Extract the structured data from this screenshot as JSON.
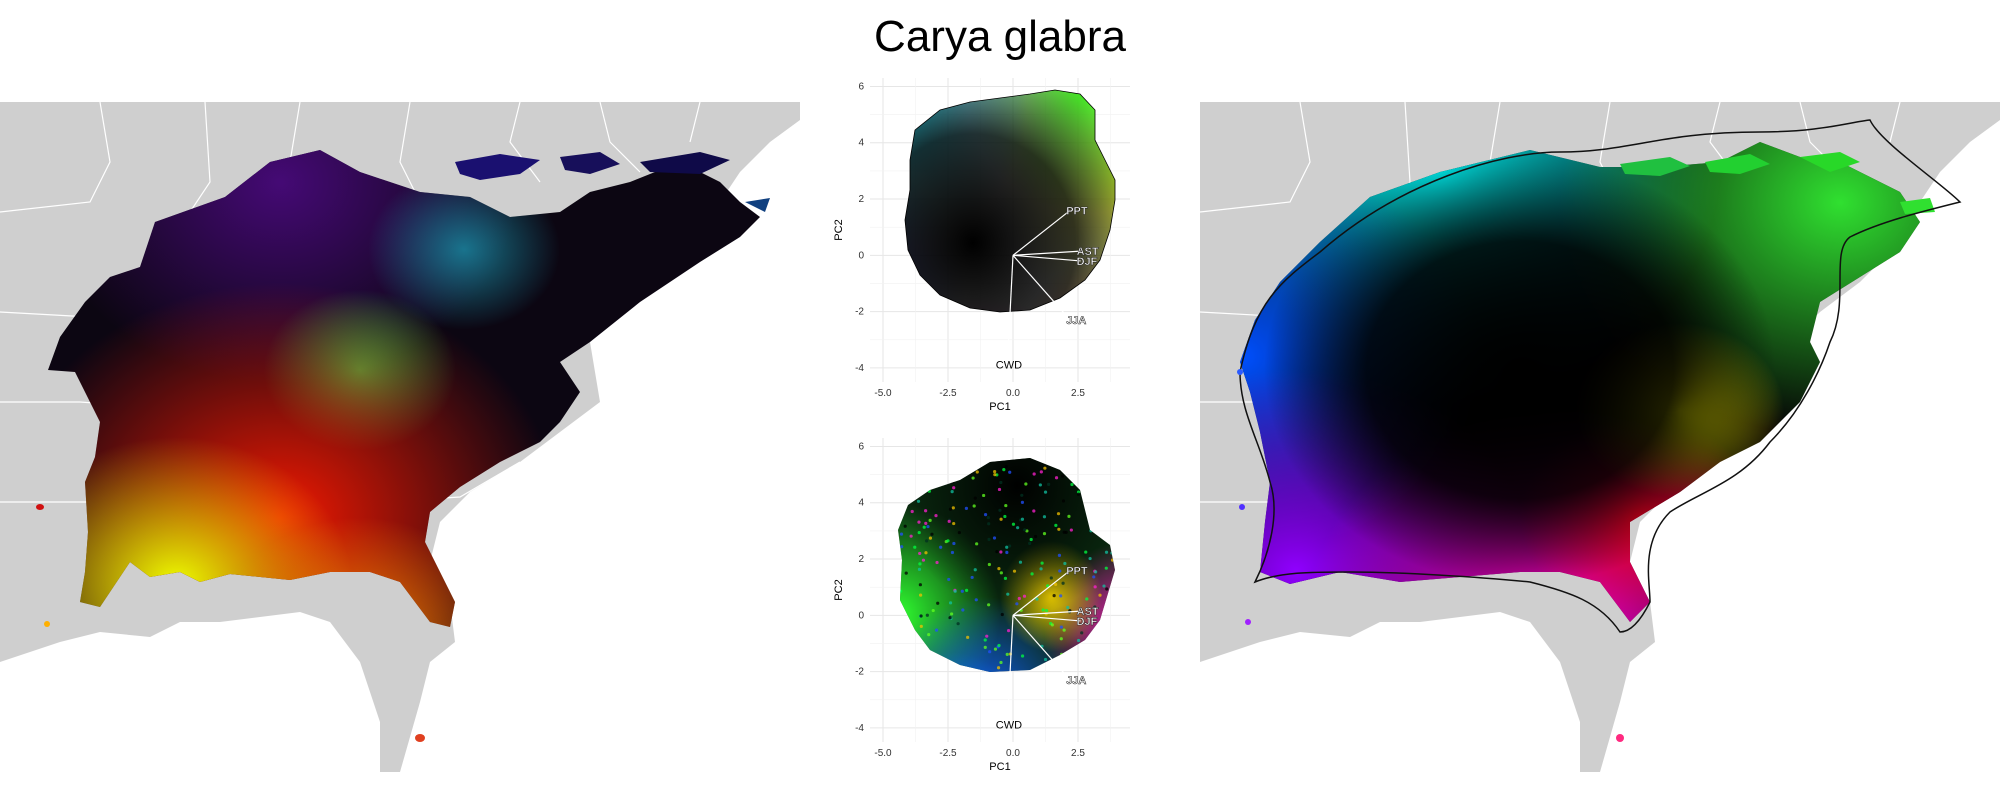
{
  "title": "Carya glabra",
  "colors": {
    "background": "#ffffff",
    "land": "#cfcfcf",
    "state_border": "#ffffff",
    "grid": "#e6e6e6",
    "vector": "#ffffff"
  },
  "maps": [
    {
      "name": "left-map",
      "description": "climate color-mapped range, topographic detail"
    },
    {
      "name": "right-map",
      "description": "smoothed color field with convex hull outline"
    }
  ],
  "pca_plots": [
    {
      "x_label": "PC1",
      "y_label": "PC2",
      "x_ticks": [
        "-5.0",
        "-2.5",
        "0.0",
        "2.5"
      ],
      "y_ticks": [
        "6",
        "4",
        "2",
        "0",
        "-2",
        "-4"
      ],
      "xlim": [
        -5.5,
        4.5
      ],
      "ylim": [
        -4.5,
        6.3
      ],
      "vectors": [
        {
          "label": "PPT",
          "x": 2.2,
          "y": 1.6
        },
        {
          "label": "AST",
          "x": 2.6,
          "y": 0.15
        },
        {
          "label": "DJF",
          "x": 2.6,
          "y": -0.2
        },
        {
          "label": "JJA",
          "x": 2.2,
          "y": -2.3
        },
        {
          "label": "CWD",
          "x": -0.2,
          "y": -3.6
        }
      ]
    },
    {
      "x_label": "PC1",
      "y_label": "PC2",
      "x_ticks": [
        "-5.0",
        "-2.5",
        "0.0",
        "2.5"
      ],
      "y_ticks": [
        "6",
        "4",
        "2",
        "0",
        "-2",
        "-4"
      ],
      "xlim": [
        -5.5,
        4.5
      ],
      "ylim": [
        -4.5,
        6.3
      ],
      "vectors": [
        {
          "label": "PPT",
          "x": 2.2,
          "y": 1.6
        },
        {
          "label": "AST",
          "x": 2.6,
          "y": 0.15
        },
        {
          "label": "DJF",
          "x": 2.6,
          "y": -0.2
        },
        {
          "label": "JJA",
          "x": 2.2,
          "y": -2.3
        },
        {
          "label": "CWD",
          "x": -0.2,
          "y": -3.6
        }
      ]
    }
  ]
}
